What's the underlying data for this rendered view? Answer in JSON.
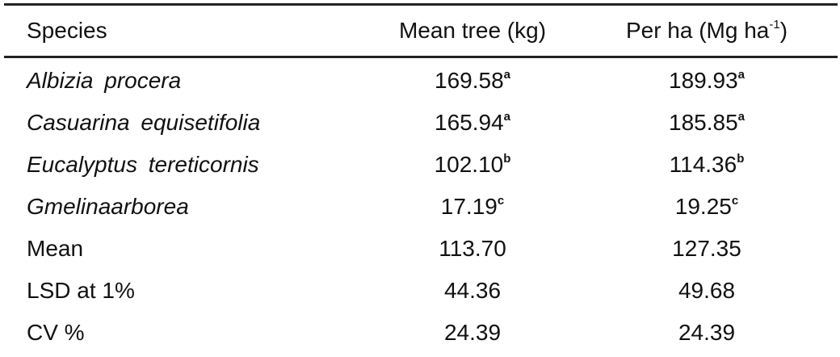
{
  "table": {
    "header": [
      {
        "text": "Species"
      },
      {
        "text": "Mean tree (kg)"
      },
      {
        "text": "Per ha (Mg ha",
        "sup": "-1",
        "tail": ")"
      }
    ],
    "species": [
      [
        {
          "text": "Albizia procera"
        },
        {
          "text": "169.58",
          "sup": "a"
        },
        {
          "text": "189.93",
          "sup": "a"
        }
      ],
      [
        {
          "text": "Casuarina equisetifolia"
        },
        {
          "text": "165.94",
          "sup": "a"
        },
        {
          "text": "185.85",
          "sup": "a"
        }
      ],
      [
        {
          "text": "Eucalyptus tereticornis"
        },
        {
          "text": "102.10",
          "sup": "b"
        },
        {
          "text": "114.36",
          "sup": "b"
        }
      ],
      [
        {
          "text": "Gmelinaarborea"
        },
        {
          "text": "17.19",
          "sup": "c"
        },
        {
          "text": "19.25",
          "sup": "c"
        }
      ]
    ],
    "statistics": [
      [
        {
          "text": "Mean"
        },
        {
          "text": "113.70"
        },
        {
          "text": "127.35"
        }
      ],
      [
        {
          "text": "LSD at 1%"
        },
        {
          "text": "44.36"
        },
        {
          "text": "49.68"
        }
      ],
      [
        {
          "text": "CV %"
        },
        {
          "text": "24.39"
        },
        {
          "text": "24.39"
        }
      ]
    ]
  }
}
